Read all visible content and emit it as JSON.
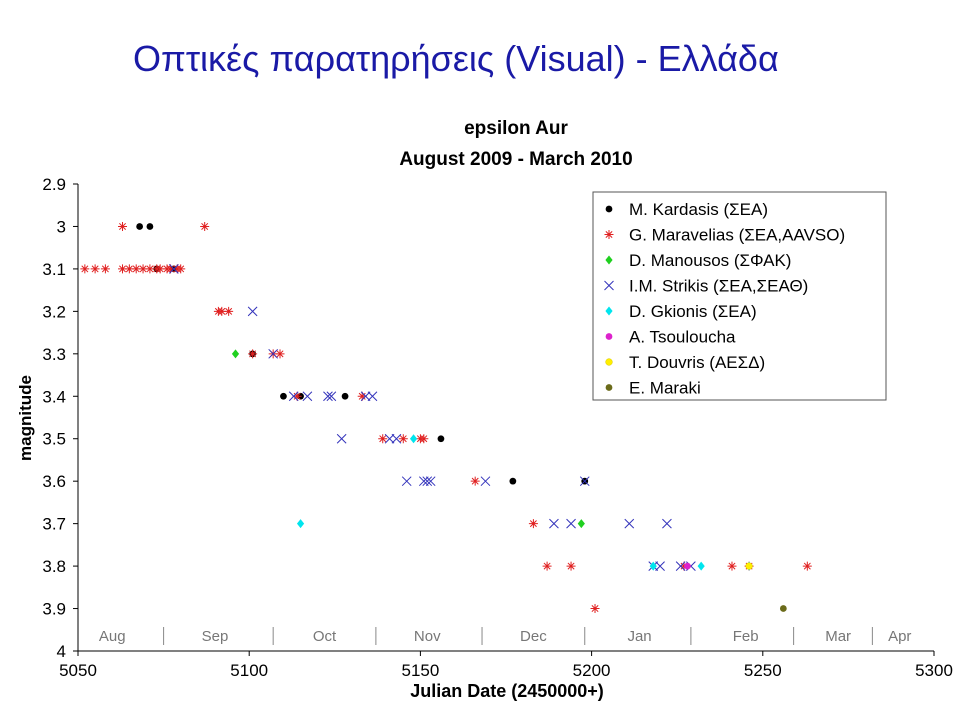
{
  "slide_title": "Οπτικές παρατηρήσεις (Visual) - Ελλάδα",
  "chart_data": {
    "type": "scatter",
    "title": "epsilon Aur",
    "subtitle": "August 2009 - March 2010",
    "xlabel": "Julian Date (2450000+)",
    "ylabel": "magnitude",
    "xlim": [
      5050,
      5300
    ],
    "ylim": [
      2.9,
      4.0
    ],
    "y_inverted": true,
    "x_ticks": [
      5050,
      5100,
      5150,
      5200,
      5250,
      5300
    ],
    "x_tick_labels": [
      "5050",
      "5100",
      "5150",
      "5200",
      "5250",
      "5300"
    ],
    "y_ticks": [
      2.9,
      3.0,
      3.1,
      3.2,
      3.3,
      3.4,
      3.5,
      3.6,
      3.7,
      3.8,
      3.9,
      4.0
    ],
    "y_tick_labels": [
      "2.9",
      "3",
      "3.1",
      "3.2",
      "3.3",
      "3.4",
      "3.5",
      "3.6",
      "3.7",
      "3.8",
      "3.9",
      "4"
    ],
    "month_labels": [
      {
        "label": "Aug",
        "x": 5060
      },
      {
        "label": "Sep",
        "x": 5090
      },
      {
        "label": "Oct",
        "x": 5122
      },
      {
        "label": "Nov",
        "x": 5152
      },
      {
        "label": "Dec",
        "x": 5183
      },
      {
        "label": "Jan",
        "x": 5214
      },
      {
        "label": "Feb",
        "x": 5245
      },
      {
        "label": "Mar",
        "x": 5272
      },
      {
        "label": "Apr",
        "x": 5290
      }
    ],
    "month_separators": [
      5075,
      5107,
      5137,
      5168,
      5198,
      5229,
      5259,
      5282
    ],
    "legend_position": "top-right",
    "grid": false,
    "series": [
      {
        "name": "M. Kardasis (ΣΕΑ)",
        "marker": "dot",
        "color": "#000000",
        "points": [
          [
            5068,
            3.0
          ],
          [
            5071,
            3.0
          ],
          [
            5073,
            3.1
          ],
          [
            5078,
            3.1
          ],
          [
            5101,
            3.3
          ],
          [
            5110,
            3.4
          ],
          [
            5115,
            3.4
          ],
          [
            5128,
            3.4
          ],
          [
            5156,
            3.5
          ],
          [
            5177,
            3.6
          ],
          [
            5198,
            3.6
          ]
        ]
      },
      {
        "name": "G. Maravelias (ΣΕΑ,AAVSO)",
        "marker": "star",
        "color": "#e02020",
        "points": [
          [
            5052,
            3.1
          ],
          [
            5055,
            3.1
          ],
          [
            5058,
            3.1
          ],
          [
            5063,
            3.1
          ],
          [
            5065,
            3.1
          ],
          [
            5067,
            3.1
          ],
          [
            5069,
            3.1
          ],
          [
            5071,
            3.1
          ],
          [
            5073,
            3.1
          ],
          [
            5074,
            3.1
          ],
          [
            5076,
            3.1
          ],
          [
            5077,
            3.1
          ],
          [
            5079,
            3.1
          ],
          [
            5080,
            3.1
          ],
          [
            5063,
            3.0
          ],
          [
            5087,
            3.0
          ],
          [
            5091,
            3.2
          ],
          [
            5092,
            3.2
          ],
          [
            5094,
            3.2
          ],
          [
            5101,
            3.3
          ],
          [
            5107,
            3.3
          ],
          [
            5109,
            3.3
          ],
          [
            5114,
            3.4
          ],
          [
            5133,
            3.4
          ],
          [
            5139,
            3.5
          ],
          [
            5145,
            3.5
          ],
          [
            5150,
            3.5
          ],
          [
            5151,
            3.5
          ],
          [
            5166,
            3.6
          ],
          [
            5183,
            3.7
          ],
          [
            5187,
            3.8
          ],
          [
            5194,
            3.8
          ],
          [
            5201,
            3.9
          ],
          [
            5227,
            3.8
          ],
          [
            5241,
            3.8
          ],
          [
            5246,
            3.8
          ],
          [
            5263,
            3.8
          ]
        ]
      },
      {
        "name": "D. Manousos (ΣΦΑΚ)",
        "marker": "diamond",
        "color": "#20d020",
        "points": [
          [
            5096,
            3.3
          ],
          [
            5197,
            3.7
          ]
        ]
      },
      {
        "name": "I.M. Strikis (ΣΕΑ,ΣΕΑΘ)",
        "marker": "x",
        "color": "#3333bb",
        "points": [
          [
            5078,
            3.1
          ],
          [
            5101,
            3.2
          ],
          [
            5107,
            3.3
          ],
          [
            5113,
            3.4
          ],
          [
            5117,
            3.4
          ],
          [
            5123,
            3.4
          ],
          [
            5124,
            3.4
          ],
          [
            5127,
            3.5
          ],
          [
            5134,
            3.4
          ],
          [
            5136,
            3.4
          ],
          [
            5141,
            3.5
          ],
          [
            5143,
            3.5
          ],
          [
            5146,
            3.6
          ],
          [
            5151,
            3.6
          ],
          [
            5152,
            3.6
          ],
          [
            5153,
            3.6
          ],
          [
            5169,
            3.6
          ],
          [
            5198,
            3.6
          ],
          [
            5189,
            3.7
          ],
          [
            5194,
            3.7
          ],
          [
            5211,
            3.7
          ],
          [
            5222,
            3.7
          ],
          [
            5218,
            3.8
          ],
          [
            5220,
            3.8
          ],
          [
            5226,
            3.8
          ],
          [
            5229,
            3.8
          ]
        ]
      },
      {
        "name": "D. Gkionis (ΣΕΑ)",
        "marker": "diamond",
        "color": "#00e5ee",
        "points": [
          [
            5115,
            3.7
          ],
          [
            5148,
            3.5
          ],
          [
            5218,
            3.8
          ],
          [
            5232,
            3.8
          ],
          [
            5246,
            3.8
          ]
        ]
      },
      {
        "name": "A. Tsouloucha",
        "marker": "dot",
        "color": "#dd22cc",
        "points": [
          [
            5228,
            3.8
          ]
        ]
      },
      {
        "name": "T. Douvris (ΑΕΣΔ)",
        "marker": "dot",
        "color": "#ffee00",
        "points": [
          [
            5246,
            3.8
          ]
        ]
      },
      {
        "name": "E. Maraki",
        "marker": "dot",
        "color": "#6b6b1a",
        "points": [
          [
            5256,
            3.9
          ]
        ]
      }
    ]
  }
}
